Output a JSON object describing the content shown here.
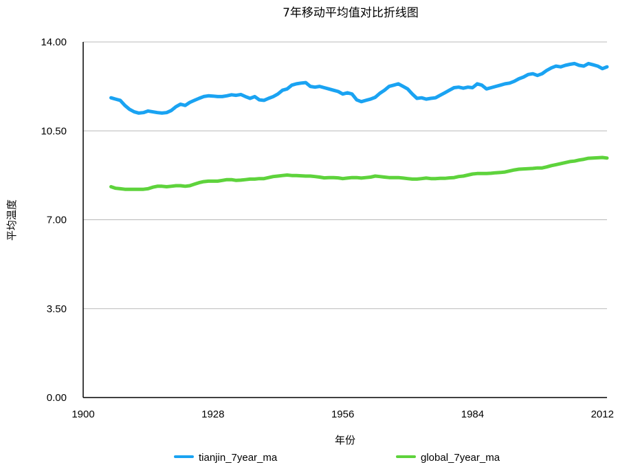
{
  "chart_data": {
    "type": "line",
    "title": "7年移动平均值对比折线图",
    "xlabel": "年份",
    "ylabel": "平均温度",
    "xlim": [
      1900,
      2013
    ],
    "ylim": [
      0,
      14
    ],
    "x_ticks": [
      1900,
      1928,
      1956,
      1984,
      2012
    ],
    "y_ticks": [
      0,
      3.5,
      7,
      10.5,
      14
    ],
    "y_tick_labels": [
      "0.00",
      "3.50",
      "7.00",
      "10.50",
      "14.00"
    ],
    "grid": "horizontal",
    "legend_position": "bottom",
    "series": [
      {
        "name": "tianjin_7year_ma",
        "color": "#1aa3f2",
        "x": [
          1906,
          1907,
          1908,
          1909,
          1910,
          1911,
          1912,
          1913,
          1914,
          1915,
          1916,
          1917,
          1918,
          1919,
          1920,
          1921,
          1922,
          1923,
          1924,
          1925,
          1926,
          1927,
          1928,
          1929,
          1930,
          1931,
          1932,
          1933,
          1934,
          1935,
          1936,
          1937,
          1938,
          1939,
          1940,
          1941,
          1942,
          1943,
          1944,
          1945,
          1946,
          1947,
          1948,
          1949,
          1950,
          1951,
          1952,
          1953,
          1954,
          1955,
          1956,
          1957,
          1958,
          1959,
          1960,
          1961,
          1962,
          1963,
          1964,
          1965,
          1966,
          1967,
          1968,
          1969,
          1970,
          1971,
          1972,
          1973,
          1974,
          1975,
          1976,
          1977,
          1978,
          1979,
          1980,
          1981,
          1982,
          1983,
          1984,
          1985,
          1986,
          1987,
          1988,
          1989,
          1990,
          1991,
          1992,
          1993,
          1994,
          1995,
          1996,
          1997,
          1998,
          1999,
          2000,
          2001,
          2002,
          2003,
          2004,
          2005,
          2006,
          2007,
          2008,
          2009,
          2010,
          2011,
          2012,
          2013
        ],
        "y": [
          11.8,
          11.75,
          11.7,
          11.5,
          11.35,
          11.25,
          11.2,
          11.22,
          11.28,
          11.25,
          11.22,
          11.2,
          11.22,
          11.3,
          11.45,
          11.55,
          11.5,
          11.62,
          11.7,
          11.78,
          11.85,
          11.88,
          11.87,
          11.85,
          11.85,
          11.88,
          11.92,
          11.9,
          11.93,
          11.85,
          11.78,
          11.85,
          11.72,
          11.7,
          11.78,
          11.85,
          11.95,
          12.1,
          12.15,
          12.3,
          12.35,
          12.38,
          12.4,
          12.25,
          12.22,
          12.25,
          12.2,
          12.15,
          12.1,
          12.05,
          11.95,
          12.0,
          11.95,
          11.72,
          11.65,
          11.7,
          11.75,
          11.82,
          11.98,
          12.1,
          12.25,
          12.3,
          12.35,
          12.25,
          12.15,
          11.95,
          11.78,
          11.8,
          11.75,
          11.78,
          11.8,
          11.9,
          12.0,
          12.1,
          12.2,
          12.22,
          12.18,
          12.22,
          12.2,
          12.35,
          12.3,
          12.15,
          12.2,
          12.25,
          12.3,
          12.35,
          12.38,
          12.45,
          12.55,
          12.62,
          12.72,
          12.75,
          12.68,
          12.75,
          12.88,
          12.98,
          13.05,
          13.02,
          13.08,
          13.12,
          13.15,
          13.08,
          13.05,
          13.15,
          13.1,
          13.05,
          12.95,
          13.02
        ]
      },
      {
        "name": "global_7year_ma",
        "color": "#5ed33c",
        "x": [
          1906,
          1907,
          1908,
          1909,
          1910,
          1911,
          1912,
          1913,
          1914,
          1915,
          1916,
          1917,
          1918,
          1919,
          1920,
          1921,
          1922,
          1923,
          1924,
          1925,
          1926,
          1927,
          1928,
          1929,
          1930,
          1931,
          1932,
          1933,
          1934,
          1935,
          1936,
          1937,
          1938,
          1939,
          1940,
          1941,
          1942,
          1943,
          1944,
          1945,
          1946,
          1947,
          1948,
          1949,
          1950,
          1951,
          1952,
          1953,
          1954,
          1955,
          1956,
          1957,
          1958,
          1959,
          1960,
          1961,
          1962,
          1963,
          1964,
          1965,
          1966,
          1967,
          1968,
          1969,
          1970,
          1971,
          1972,
          1973,
          1974,
          1975,
          1976,
          1977,
          1978,
          1979,
          1980,
          1981,
          1982,
          1983,
          1984,
          1985,
          1986,
          1987,
          1988,
          1989,
          1990,
          1991,
          1992,
          1993,
          1994,
          1995,
          1996,
          1997,
          1998,
          1999,
          2000,
          2001,
          2002,
          2003,
          2004,
          2005,
          2006,
          2007,
          2008,
          2009,
          2010,
          2011,
          2012,
          2013
        ],
        "y": [
          8.3,
          8.24,
          8.22,
          8.2,
          8.2,
          8.2,
          8.2,
          8.2,
          8.22,
          8.28,
          8.32,
          8.32,
          8.3,
          8.32,
          8.34,
          8.34,
          8.32,
          8.34,
          8.4,
          8.46,
          8.5,
          8.52,
          8.52,
          8.52,
          8.55,
          8.58,
          8.58,
          8.55,
          8.56,
          8.58,
          8.6,
          8.6,
          8.62,
          8.62,
          8.66,
          8.7,
          8.72,
          8.74,
          8.76,
          8.74,
          8.74,
          8.73,
          8.72,
          8.72,
          8.7,
          8.68,
          8.65,
          8.66,
          8.66,
          8.65,
          8.62,
          8.64,
          8.66,
          8.66,
          8.64,
          8.66,
          8.68,
          8.72,
          8.7,
          8.68,
          8.66,
          8.66,
          8.66,
          8.64,
          8.62,
          8.6,
          8.6,
          8.62,
          8.64,
          8.62,
          8.62,
          8.63,
          8.63,
          8.65,
          8.66,
          8.7,
          8.72,
          8.76,
          8.8,
          8.82,
          8.82,
          8.82,
          8.83,
          8.85,
          8.86,
          8.88,
          8.92,
          8.96,
          8.99,
          9.0,
          9.01,
          9.02,
          9.04,
          9.04,
          9.08,
          9.13,
          9.17,
          9.21,
          9.25,
          9.29,
          9.31,
          9.35,
          9.38,
          9.42,
          9.43,
          9.44,
          9.45,
          9.43
        ]
      }
    ]
  }
}
